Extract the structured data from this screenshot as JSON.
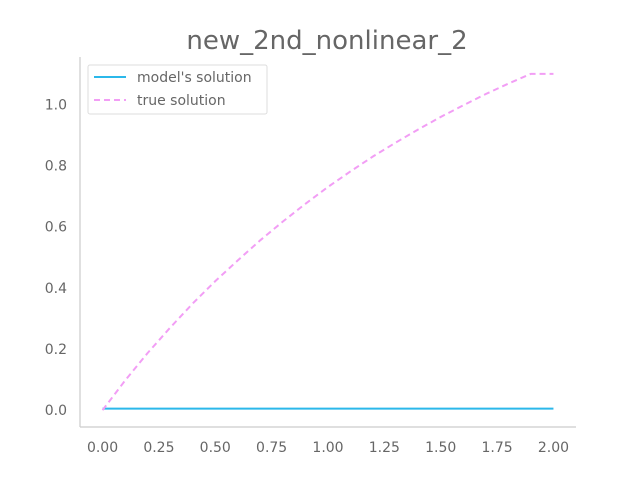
{
  "chart_data": {
    "type": "line",
    "title": "new_2nd_nonlinear_2",
    "xlabel": "",
    "ylabel": "",
    "xlim": [
      -0.1,
      2.1
    ],
    "ylim": [
      -0.055,
      1.155
    ],
    "x_ticks": [
      0.0,
      0.25,
      0.5,
      0.75,
      1.0,
      1.25,
      1.5,
      1.75,
      2.0
    ],
    "x_tick_labels": [
      "0.00",
      "0.25",
      "0.50",
      "0.75",
      "1.00",
      "1.25",
      "1.50",
      "1.75",
      "2.00"
    ],
    "y_ticks": [
      0.0,
      0.2,
      0.4,
      0.6,
      0.8,
      1.0
    ],
    "y_tick_labels": [
      "0.0",
      "0.2",
      "0.4",
      "0.6",
      "0.8",
      "1.0"
    ],
    "grid": false,
    "legend_position": "top-left",
    "colors": {
      "text": "#666666",
      "axis": "#cccccc",
      "legend_border": "#dddddd"
    },
    "series": [
      {
        "name": "model's solution",
        "style": "solid",
        "color": "#2bb8ea",
        "x": [
          0.0,
          0.25,
          0.5,
          0.75,
          1.0,
          1.25,
          1.5,
          1.75,
          2.0
        ],
        "y": [
          0.005,
          0.005,
          0.005,
          0.005,
          0.005,
          0.005,
          0.005,
          0.005,
          0.005
        ]
      },
      {
        "name": "true solution",
        "style": "dashed",
        "color": "#f29ef5",
        "x": [
          0.0,
          0.1,
          0.2,
          0.3,
          0.4,
          0.5,
          0.6,
          0.7,
          0.8,
          0.9,
          1.0,
          1.1,
          1.2,
          1.3,
          1.4,
          1.5,
          1.6,
          1.7,
          1.8,
          1.9,
          2.0
        ],
        "y": [
          0.0,
          0.097,
          0.187,
          0.27,
          0.349,
          0.422,
          0.49,
          0.556,
          0.617,
          0.675,
          0.73,
          0.781,
          0.83,
          0.875,
          0.918,
          0.959,
          0.997,
          1.034,
          1.068,
          1.1,
          1.1
        ]
      }
    ]
  }
}
